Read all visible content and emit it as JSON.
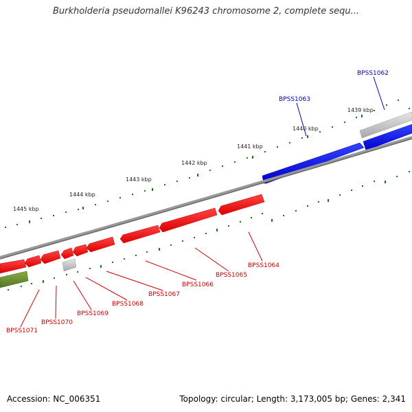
{
  "title": "Burkholderia pseudomallei K96243 chromosome 2, complete sequ...",
  "footer": {
    "accession_text": "Accession: NC_006351",
    "topology_text": "Topology: circular; Length: 3,173,005 bp; Genes: 2,341"
  },
  "ticks": [
    "1439 kbp",
    "1440 kbp",
    "1441 kbp",
    "1442 kbp",
    "1443 kbp",
    "1444 kbp",
    "1445 kbp"
  ],
  "genes_forward": [
    "BPSS1062",
    "BPSS1063"
  ],
  "genes_reverse": [
    "BPSS1064",
    "BPSS1065",
    "BPSS1066",
    "BPSS1067",
    "BPSS1068",
    "BPSS1069",
    "BPSS1070",
    "BPSS1071"
  ],
  "colors": {
    "forward_gene": "#0000dd",
    "reverse_gene": "#ee0000",
    "other_gene": "#bbbbbb",
    "rna_feature": "#669922",
    "backbone": "#888888",
    "tick": "#117711"
  }
}
